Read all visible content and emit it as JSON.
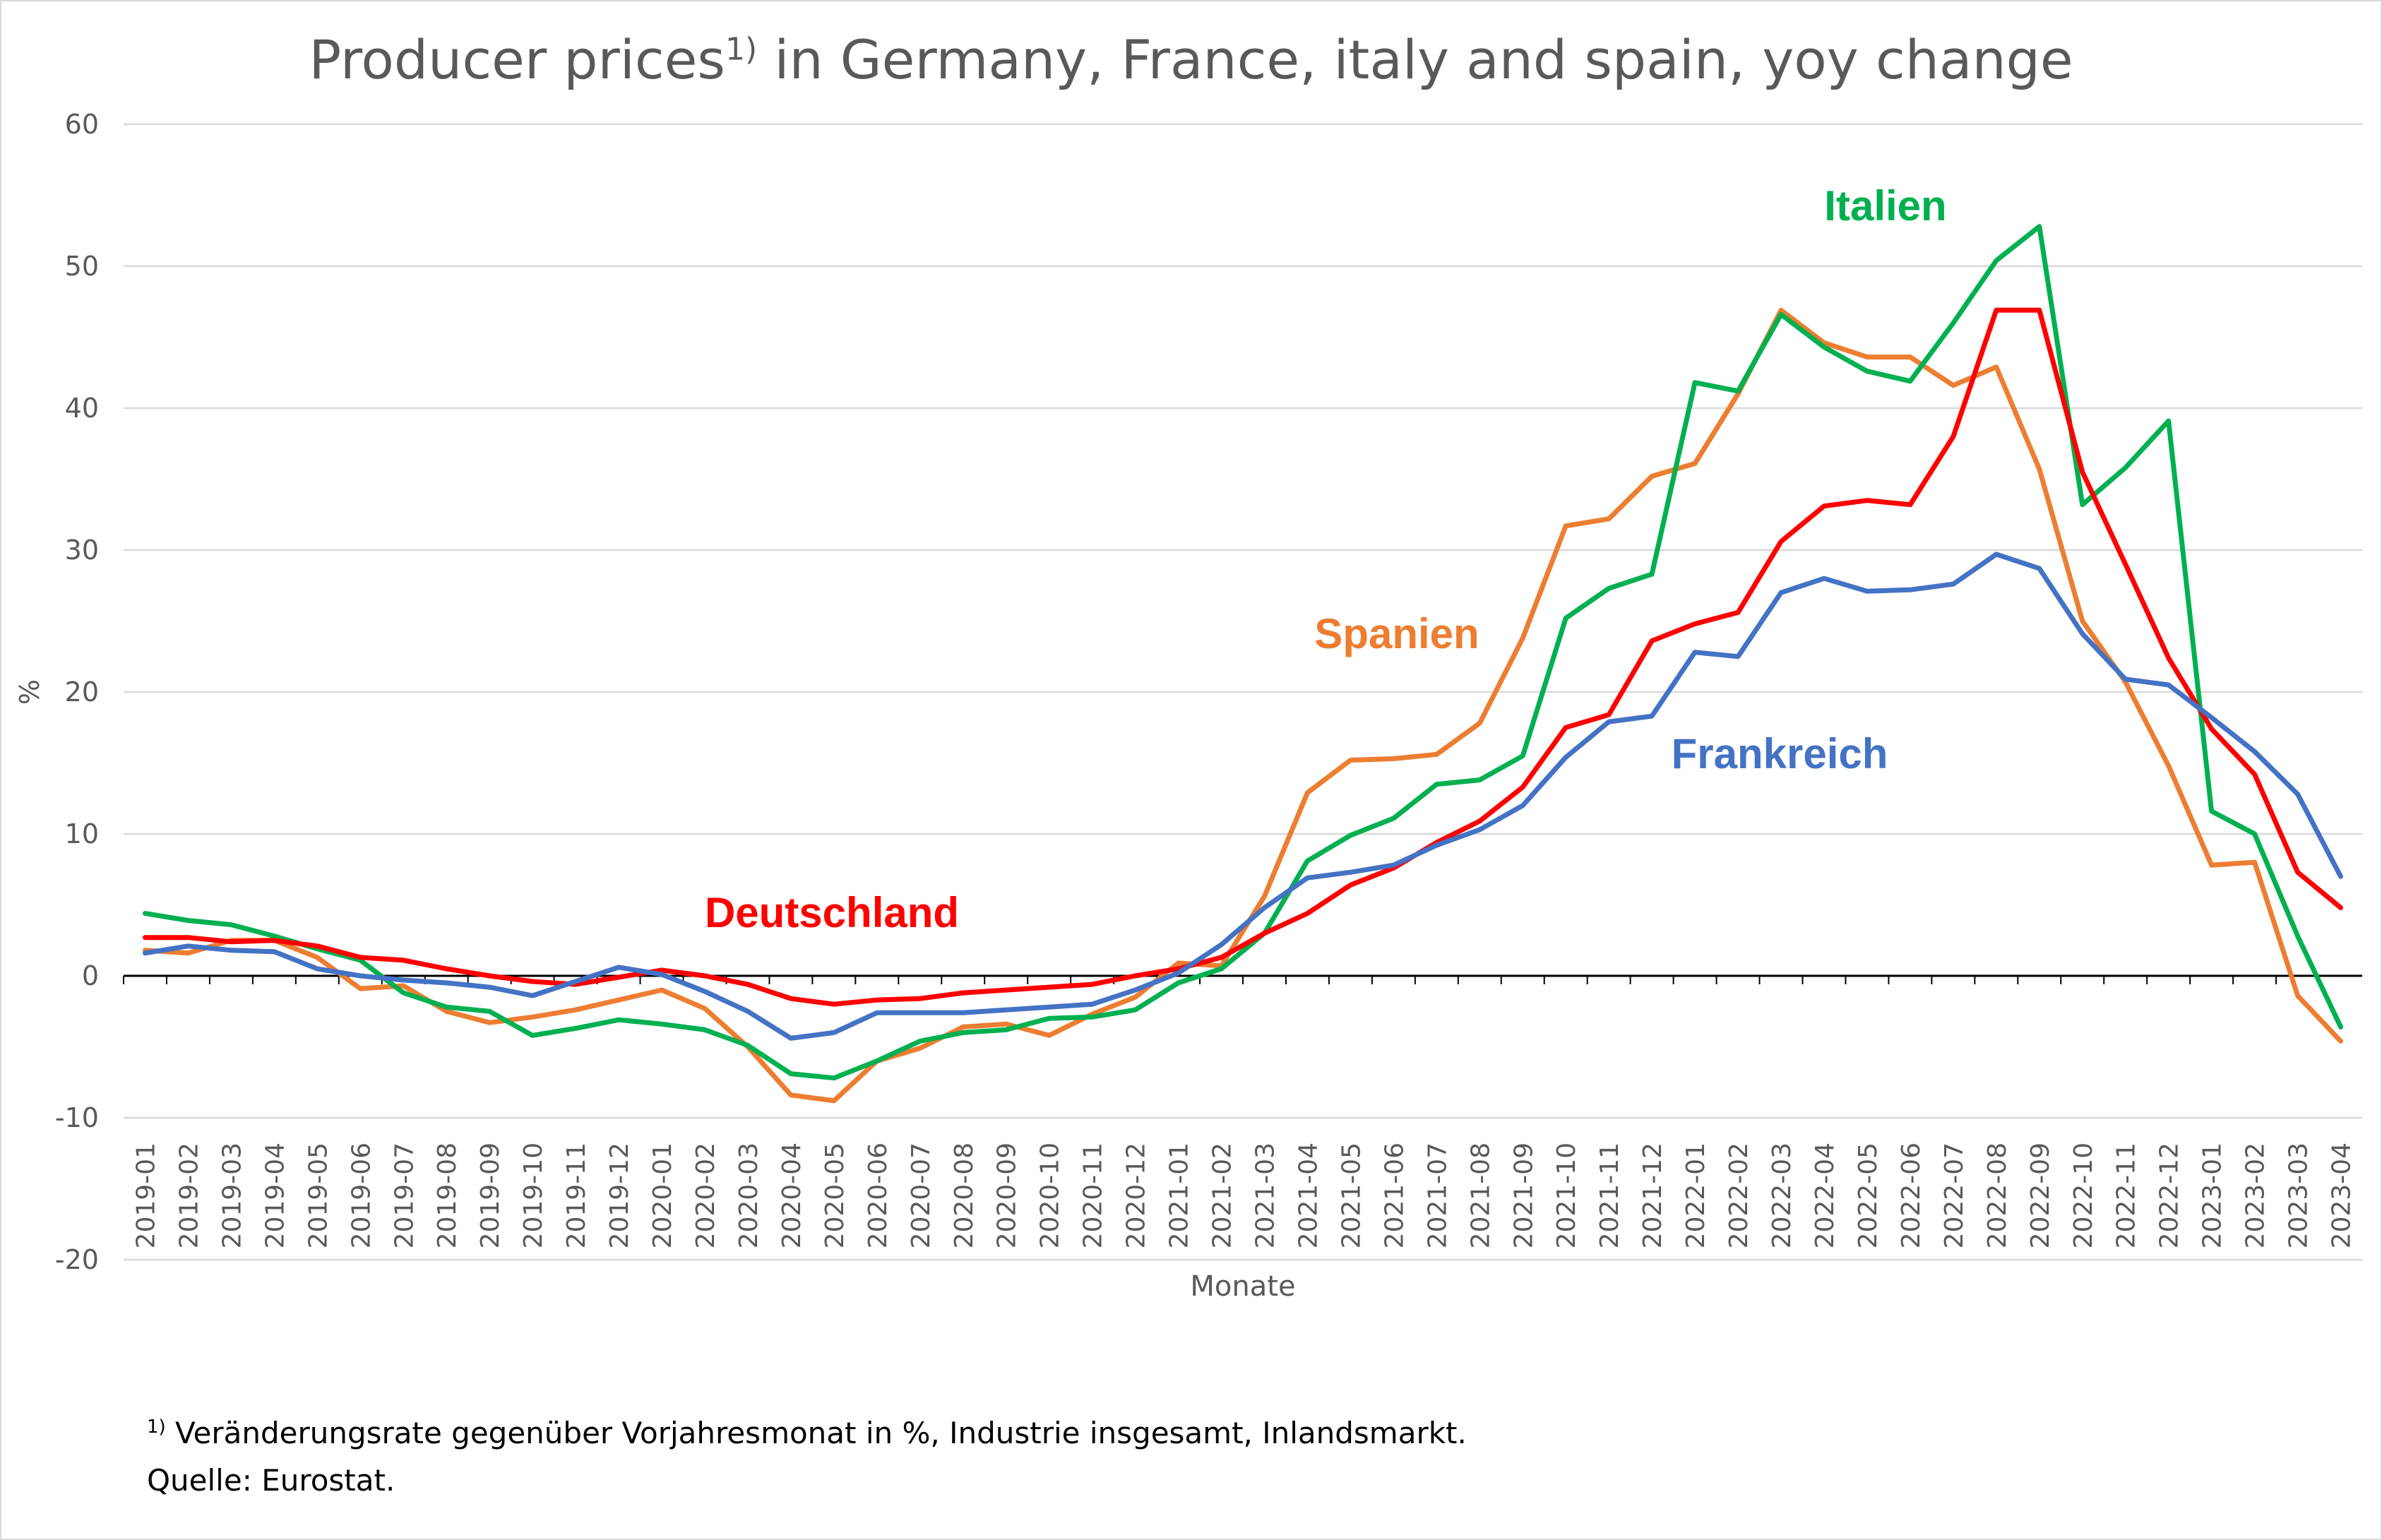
{
  "header": {
    "title_main": "Producer prices",
    "title_sup": "1)",
    "title_rest": " in Germany, France, italy and spain, yoy change"
  },
  "footnotes": {
    "note_sup": "1)",
    "note_text": " Veränderungsrate gegenüber Vorjahresmonat in %, Industrie insgesamt, Inlandsmarkt.",
    "source": "Quelle: Eurostat."
  },
  "chart_data": {
    "type": "line",
    "xlabel": "Monate",
    "ylabel": "%",
    "ylim": [
      -20,
      60
    ],
    "yticks": [
      60,
      50,
      40,
      30,
      20,
      10,
      0,
      -10,
      -20
    ],
    "grid": true,
    "categories": [
      "2019-01",
      "2019-02",
      "2019-03",
      "2019-04",
      "2019-05",
      "2019-06",
      "2019-07",
      "2019-08",
      "2019-09",
      "2019-10",
      "2019-11",
      "2019-12",
      "2020-01",
      "2020-02",
      "2020-03",
      "2020-04",
      "2020-05",
      "2020-06",
      "2020-07",
      "2020-08",
      "2020-09",
      "2020-10",
      "2020-11",
      "2020-12",
      "2021-01",
      "2021-02",
      "2021-03",
      "2021-04",
      "2021-05",
      "2021-06",
      "2021-07",
      "2021-08",
      "2021-09",
      "2021-10",
      "2021-11",
      "2021-12",
      "2022-01",
      "2022-02",
      "2022-03",
      "2022-04",
      "2022-05",
      "2022-06",
      "2022-07",
      "2022-08",
      "2022-09",
      "2022-10",
      "2022-11",
      "2022-12",
      "2023-01",
      "2023-02",
      "2023-03",
      "2023-04"
    ],
    "series": [
      {
        "name": "Spanien",
        "color": "#ED7D31",
        "values": [
          1.8,
          1.6,
          2.5,
          2.5,
          1.3,
          -0.9,
          -0.7,
          -2.5,
          -3.3,
          -2.9,
          -2.4,
          -1.7,
          -1.0,
          -2.3,
          -5.0,
          -8.4,
          -8.8,
          -6.0,
          -5.1,
          -3.6,
          -3.4,
          -4.2,
          -2.7,
          -1.5,
          0.9,
          0.7,
          5.6,
          12.9,
          15.2,
          15.3,
          15.6,
          17.8,
          23.8,
          31.7,
          32.2,
          35.2,
          36.1,
          41.0,
          46.9,
          44.6,
          43.6,
          43.6,
          41.6,
          42.9,
          35.7,
          25.0,
          20.7,
          14.8,
          7.8,
          8.0,
          -1.4,
          -4.6
        ]
      },
      {
        "name": "Italien",
        "color": "#00B050",
        "values": [
          4.4,
          3.9,
          3.6,
          2.8,
          1.9,
          1.1,
          -1.2,
          -2.2,
          -2.5,
          -4.2,
          -3.7,
          -3.1,
          -3.4,
          -3.8,
          -4.9,
          -6.9,
          -7.2,
          -6.0,
          -4.6,
          -4.0,
          -3.8,
          -3.0,
          -2.9,
          -2.4,
          -0.5,
          0.5,
          3.0,
          8.1,
          9.9,
          11.1,
          13.5,
          13.8,
          15.5,
          25.2,
          27.3,
          28.3,
          41.8,
          41.2,
          46.6,
          44.3,
          42.6,
          41.9,
          46.0,
          50.4,
          52.8,
          33.2,
          35.8,
          39.1,
          11.6,
          10.0,
          2.8,
          -3.6
        ]
      },
      {
        "name": "Deutschland",
        "color": "#FF0000",
        "values": [
          2.7,
          2.7,
          2.4,
          2.5,
          2.1,
          1.3,
          1.1,
          0.5,
          0.0,
          -0.4,
          -0.6,
          -0.1,
          0.4,
          0.0,
          -0.6,
          -1.6,
          -2.0,
          -1.7,
          -1.6,
          -1.2,
          -1.0,
          -0.8,
          -0.6,
          0.0,
          0.5,
          1.3,
          3.0,
          4.4,
          6.4,
          7.6,
          9.4,
          10.9,
          13.3,
          17.5,
          18.4,
          23.6,
          24.8,
          25.6,
          30.6,
          33.1,
          33.5,
          33.2,
          38.0,
          46.9,
          46.9,
          35.5,
          29.0,
          22.4,
          17.4,
          14.2,
          7.3,
          4.8
        ]
      },
      {
        "name": "Frankreich",
        "color": "#4472C4",
        "values": [
          1.6,
          2.1,
          1.8,
          1.7,
          0.5,
          0.0,
          -0.3,
          -0.5,
          -0.8,
          -1.4,
          -0.4,
          0.6,
          0.1,
          -1.1,
          -2.5,
          -4.4,
          -4.0,
          -2.6,
          -2.6,
          -2.6,
          -2.4,
          -2.2,
          -2.0,
          -1.0,
          0.2,
          2.2,
          4.8,
          6.9,
          7.3,
          7.8,
          9.2,
          10.3,
          12.0,
          15.4,
          17.9,
          18.3,
          22.8,
          22.5,
          27.0,
          28.0,
          27.1,
          27.2,
          27.6,
          29.7,
          28.7,
          24.1,
          20.9,
          20.5,
          18.2,
          15.8,
          12.8,
          7.0
        ]
      }
    ],
    "annotations": [
      {
        "text": "Italien",
        "color": "#00B050"
      },
      {
        "text": "Spanien",
        "color": "#ED7D31"
      },
      {
        "text": "Frankreich",
        "color": "#4472C4"
      },
      {
        "text": "Deutschland",
        "color": "#FF0000"
      }
    ]
  }
}
